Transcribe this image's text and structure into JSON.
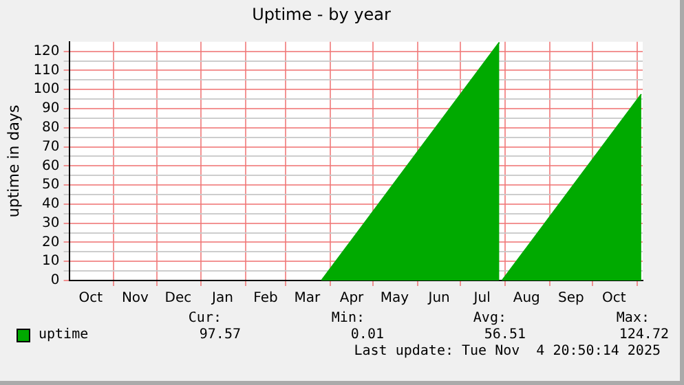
{
  "chart_data": {
    "type": "area",
    "title": "Uptime - by year",
    "ylabel": "uptime in days",
    "xlim": [
      "2024-10-01",
      "2025-11-05"
    ],
    "xticks": [
      {
        "value": "2024-10-16",
        "label": "Oct"
      },
      {
        "value": "2024-11-01",
        "label": null
      },
      {
        "value": "2024-11-16",
        "label": "Nov"
      },
      {
        "value": "2024-12-01",
        "label": null
      },
      {
        "value": "2024-12-16",
        "label": "Dec"
      },
      {
        "value": "2025-01-01",
        "label": null
      },
      {
        "value": "2025-01-16",
        "label": "Jan"
      },
      {
        "value": "2025-02-01",
        "label": null
      },
      {
        "value": "2025-02-15",
        "label": "Feb"
      },
      {
        "value": "2025-03-01",
        "label": null
      },
      {
        "value": "2025-03-16",
        "label": "Mar"
      },
      {
        "value": "2025-04-01",
        "label": null
      },
      {
        "value": "2025-04-16",
        "label": "Apr"
      },
      {
        "value": "2025-05-01",
        "label": null
      },
      {
        "value": "2025-05-16",
        "label": "May"
      },
      {
        "value": "2025-06-01",
        "label": null
      },
      {
        "value": "2025-06-16",
        "label": "Jun"
      },
      {
        "value": "2025-07-01",
        "label": null
      },
      {
        "value": "2025-07-16",
        "label": "Jul"
      },
      {
        "value": "2025-08-01",
        "label": null
      },
      {
        "value": "2025-08-16",
        "label": "Aug"
      },
      {
        "value": "2025-09-01",
        "label": null
      },
      {
        "value": "2025-09-16",
        "label": "Sep"
      },
      {
        "value": "2025-10-01",
        "label": null
      },
      {
        "value": "2025-10-16",
        "label": "Oct"
      },
      {
        "value": "2025-11-01",
        "label": null
      }
    ],
    "ylim": [
      0,
      125
    ],
    "yticks": [
      0,
      {
        "value": 5,
        "label": null
      },
      10,
      {
        "value": 15,
        "label": null
      },
      20,
      {
        "value": 25,
        "label": null
      },
      30,
      {
        "value": 35,
        "label": null
      },
      40,
      {
        "value": 45,
        "label": null
      },
      50,
      {
        "value": 55,
        "label": null
      },
      60,
      {
        "value": 65,
        "label": null
      },
      70,
      {
        "value": 75,
        "label": null
      },
      80,
      {
        "value": 85,
        "label": null
      },
      90,
      {
        "value": 95,
        "label": null
      },
      100,
      {
        "value": 105,
        "label": null
      },
      110,
      {
        "value": 115,
        "label": null
      },
      120
    ],
    "grid": true,
    "legend": "bottom left",
    "series": [
      {
        "name": "uptime",
        "color": "#00aa00",
        "x": [
          "2025-03-26",
          "2025-07-28",
          "2025-07-29",
          "2025-07-30",
          "2025-11-04"
        ],
        "values": [
          0.01,
          124.72,
          null,
          0.01,
          97.57
        ]
      }
    ],
    "annotations": [
      "Cur:",
      "Min:",
      "Avg:",
      "Max:",
      "97.57",
      "0.01",
      "56.51",
      "124.72",
      "Last update: Tue Nov  4 20:50:14 2025"
    ]
  }
}
